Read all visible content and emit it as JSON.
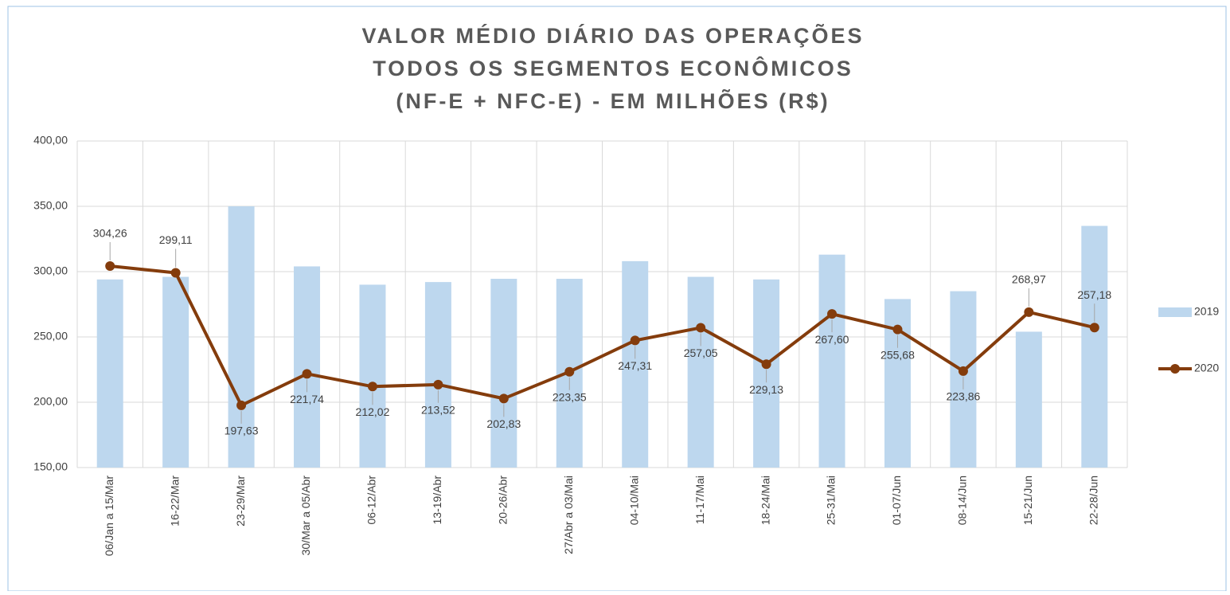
{
  "chart_data": {
    "type": "bar",
    "title": [
      "VALOR MÉDIO DIÁRIO DAS OPERAÇÕES",
      "TODOS OS SEGMENTOS ECONÔMICOS",
      "(NF-E + NFC-E) - EM MILHÕES (R$)"
    ],
    "categories": [
      "06/Jan a 15/Mar",
      "16-22/Mar",
      "23-29/Mar",
      "30/Mar a 05/Abr",
      "06-12/Abr",
      "13-19/Abr",
      "20-26/Abr",
      "27/Abr a 03/Mai",
      "04-10/Mai",
      "11-17/Mai",
      "18-24/Mai",
      "25-31/Mai",
      "01-07/Jun",
      "08-14/Jun",
      "15-21/Jun",
      "22-28/Jun"
    ],
    "series": [
      {
        "name": "2019",
        "type": "bar",
        "color": "#bdd7ee",
        "values": [
          294,
          296,
          350,
          304,
          290,
          292,
          294.5,
          294.5,
          308,
          296,
          294,
          313,
          279,
          285,
          254,
          335
        ]
      },
      {
        "name": "2020",
        "type": "line",
        "color": "#843c0c",
        "values": [
          304.26,
          299.11,
          197.63,
          221.74,
          212.02,
          213.52,
          202.83,
          223.35,
          247.31,
          257.05,
          229.13,
          267.6,
          255.68,
          223.86,
          268.97,
          257.18
        ],
        "value_labels": [
          "304,26",
          "299,11",
          "197,63",
          "221,74",
          "212,02",
          "213,52",
          "202,83",
          "223,35",
          "247,31",
          "257,05",
          "229,13",
          "267,60",
          "255,68",
          "223,86",
          "268,97",
          "257,18"
        ]
      }
    ],
    "ylim": [
      150,
      400
    ],
    "yticks": [
      {
        "value": 150,
        "label": "150,00"
      },
      {
        "value": 200,
        "label": "200,00"
      },
      {
        "value": 250,
        "label": "250,00"
      },
      {
        "value": 300,
        "label": "300,00"
      },
      {
        "value": 350,
        "label": "350,00"
      },
      {
        "value": 400,
        "label": "400,00"
      }
    ],
    "grid": true,
    "legend": "right"
  }
}
